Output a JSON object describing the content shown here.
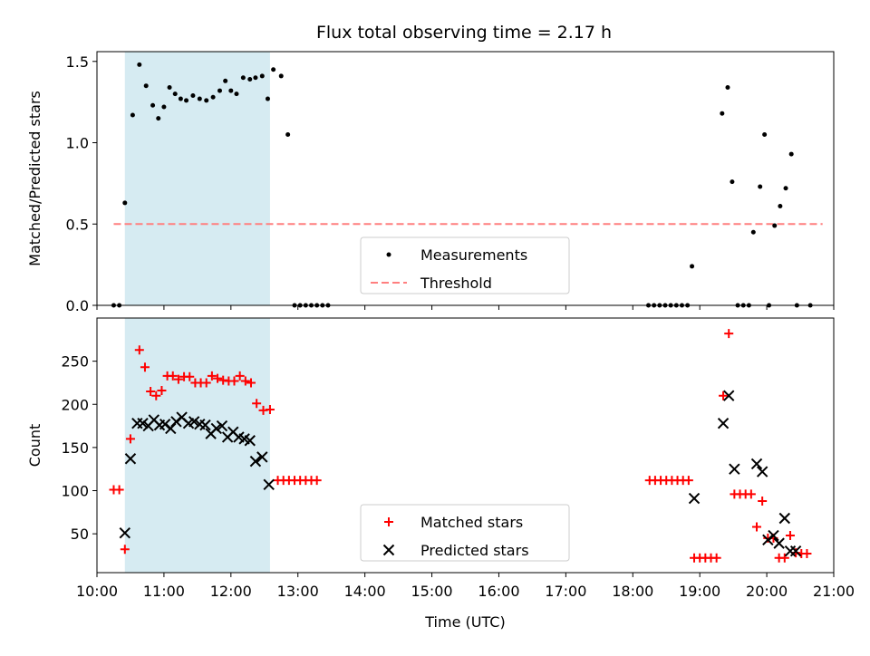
{
  "figure": {
    "title": "Flux total observing time = 2.17 h"
  },
  "chart_data": [
    {
      "type": "scatter",
      "ylabel": "Matched/Predicted stars",
      "ylim": [
        0,
        1.56
      ],
      "xlim": [
        "10:00",
        "21:00"
      ],
      "yticks": [
        "0.0",
        "0.5",
        "1.0",
        "1.5"
      ],
      "shaded_interval": [
        "10:25",
        "12:35"
      ],
      "shade_color": "#add8e6",
      "threshold": {
        "name": "Threshold",
        "value": 0.5,
        "x": [
          "10:15",
          "20:50"
        ],
        "color": "#ff7f7f"
      },
      "legend": {
        "placement": "lower-center",
        "entries": [
          "Measurements",
          "Threshold"
        ]
      },
      "series": [
        {
          "name": "Measurements",
          "color": "#000000",
          "points": [
            [
              "10:15",
              0
            ],
            [
              "10:20",
              0
            ],
            [
              "10:25",
              0.63
            ],
            [
              "10:32",
              1.17
            ],
            [
              "10:38",
              1.48
            ],
            [
              "10:44",
              1.35
            ],
            [
              "10:50",
              1.23
            ],
            [
              "10:55",
              1.15
            ],
            [
              "11:00",
              1.22
            ],
            [
              "11:05",
              1.34
            ],
            [
              "11:10",
              1.3
            ],
            [
              "11:15",
              1.27
            ],
            [
              "11:20",
              1.26
            ],
            [
              "11:26",
              1.29
            ],
            [
              "11:32",
              1.27
            ],
            [
              "11:38",
              1.26
            ],
            [
              "11:44",
              1.28
            ],
            [
              "11:50",
              1.32
            ],
            [
              "11:55",
              1.38
            ],
            [
              "12:00",
              1.32
            ],
            [
              "12:05",
              1.3
            ],
            [
              "12:11",
              1.4
            ],
            [
              "12:17",
              1.39
            ],
            [
              "12:22",
              1.4
            ],
            [
              "12:28",
              1.41
            ],
            [
              "12:33",
              1.27
            ],
            [
              "12:38",
              1.45
            ],
            [
              "12:45",
              1.41
            ],
            [
              "12:51",
              1.05
            ],
            [
              "12:57",
              0
            ],
            [
              "13:02",
              0
            ],
            [
              "13:07",
              0
            ],
            [
              "13:12",
              0
            ],
            [
              "13:17",
              0
            ],
            [
              "13:22",
              0
            ],
            [
              "13:27",
              0
            ],
            [
              "18:14",
              0
            ],
            [
              "18:19",
              0
            ],
            [
              "18:24",
              0
            ],
            [
              "18:29",
              0
            ],
            [
              "18:34",
              0
            ],
            [
              "18:39",
              0
            ],
            [
              "18:44",
              0
            ],
            [
              "18:49",
              0
            ],
            [
              "18:53",
              0.24
            ],
            [
              "19:20",
              1.18
            ],
            [
              "19:25",
              1.34
            ],
            [
              "19:29",
              0.76
            ],
            [
              "19:34",
              0
            ],
            [
              "19:39",
              0
            ],
            [
              "19:44",
              0
            ],
            [
              "19:48",
              0.45
            ],
            [
              "19:54",
              0.73
            ],
            [
              "19:58",
              1.05
            ],
            [
              "20:02",
              0
            ],
            [
              "20:07",
              0.49
            ],
            [
              "20:12",
              0.61
            ],
            [
              "20:17",
              0.72
            ],
            [
              "20:22",
              0.93
            ],
            [
              "20:27",
              0
            ],
            [
              "20:39",
              0
            ]
          ]
        }
      ]
    },
    {
      "type": "scatter",
      "xlabel": "Time (UTC)",
      "ylabel": "Count",
      "ylim": [
        5,
        300
      ],
      "xlim": [
        "10:00",
        "21:00"
      ],
      "yticks": [
        "50",
        "100",
        "150",
        "200",
        "250"
      ],
      "xticks": [
        "10:00",
        "11:00",
        "12:00",
        "13:00",
        "14:00",
        "15:00",
        "16:00",
        "17:00",
        "18:00",
        "19:00",
        "20:00",
        "21:00"
      ],
      "shaded_interval": [
        "10:25",
        "12:35"
      ],
      "legend": {
        "placement": "lower-center",
        "entries": [
          "Matched stars",
          "Predicted stars"
        ]
      },
      "series": [
        {
          "name": "Matched stars",
          "marker": "plus",
          "color": "#ff0000",
          "points": [
            [
              "10:15",
              101
            ],
            [
              "10:20",
              101
            ],
            [
              "10:25",
              32
            ],
            [
              "10:30",
              160
            ],
            [
              "10:38",
              263
            ],
            [
              "10:43",
              243
            ],
            [
              "10:48",
              215
            ],
            [
              "10:53",
              210
            ],
            [
              "10:58",
              216
            ],
            [
              "11:03",
              233
            ],
            [
              "11:08",
              233
            ],
            [
              "11:13",
              229
            ],
            [
              "11:18",
              232
            ],
            [
              "11:23",
              232
            ],
            [
              "11:28",
              225
            ],
            [
              "11:33",
              225
            ],
            [
              "11:38",
              225
            ],
            [
              "11:43",
              233
            ],
            [
              "11:48",
              230
            ],
            [
              "11:53",
              228
            ],
            [
              "11:58",
              227
            ],
            [
              "12:03",
              227
            ],
            [
              "12:08",
              233
            ],
            [
              "12:13",
              227
            ],
            [
              "12:18",
              225
            ],
            [
              "12:23",
              201
            ],
            [
              "12:29",
              193
            ],
            [
              "12:35",
              194
            ],
            [
              "12:42",
              112
            ],
            [
              "12:47",
              112
            ],
            [
              "12:52",
              112
            ],
            [
              "12:57",
              112
            ],
            [
              "13:02",
              112
            ],
            [
              "13:07",
              112
            ],
            [
              "13:12",
              112
            ],
            [
              "13:17",
              112
            ],
            [
              "18:15",
              112
            ],
            [
              "18:20",
              112
            ],
            [
              "18:25",
              112
            ],
            [
              "18:30",
              112
            ],
            [
              "18:35",
              112
            ],
            [
              "18:40",
              112
            ],
            [
              "18:45",
              112
            ],
            [
              "18:50",
              112
            ],
            [
              "18:55",
              22
            ],
            [
              "19:00",
              22
            ],
            [
              "19:05",
              22
            ],
            [
              "19:10",
              22
            ],
            [
              "19:15",
              22
            ],
            [
              "19:21",
              210
            ],
            [
              "19:26",
              282
            ],
            [
              "19:31",
              96
            ],
            [
              "19:36",
              96
            ],
            [
              "19:41",
              96
            ],
            [
              "19:46",
              96
            ],
            [
              "19:51",
              58
            ],
            [
              "19:56",
              88
            ],
            [
              "20:01",
              45
            ],
            [
              "20:06",
              45
            ],
            [
              "20:11",
              22
            ],
            [
              "20:16",
              22
            ],
            [
              "20:21",
              48
            ],
            [
              "20:26",
              28
            ],
            [
              "20:31",
              27
            ],
            [
              "20:36",
              27
            ]
          ]
        },
        {
          "name": "Predicted stars",
          "marker": "x",
          "color": "#000000",
          "points": [
            [
              "10:25",
              51
            ],
            [
              "10:30",
              137
            ],
            [
              "10:36",
              178
            ],
            [
              "10:41",
              178
            ],
            [
              "10:46",
              175
            ],
            [
              "10:51",
              182
            ],
            [
              "10:56",
              176
            ],
            [
              "11:01",
              177
            ],
            [
              "11:06",
              172
            ],
            [
              "11:11",
              180
            ],
            [
              "11:16",
              185
            ],
            [
              "11:22",
              178
            ],
            [
              "11:27",
              180
            ],
            [
              "11:32",
              177
            ],
            [
              "11:37",
              176
            ],
            [
              "11:42",
              166
            ],
            [
              "11:47",
              172
            ],
            [
              "11:52",
              175
            ],
            [
              "11:57",
              162
            ],
            [
              "12:02",
              168
            ],
            [
              "12:07",
              162
            ],
            [
              "12:12",
              160
            ],
            [
              "12:17",
              158
            ],
            [
              "12:22",
              134
            ],
            [
              "12:28",
              139
            ],
            [
              "12:34",
              107
            ],
            [
              "18:55",
              91
            ],
            [
              "19:21",
              178
            ],
            [
              "19:26",
              210
            ],
            [
              "19:31",
              125
            ],
            [
              "19:51",
              131
            ],
            [
              "19:56",
              122
            ],
            [
              "20:01",
              43
            ],
            [
              "20:06",
              48
            ],
            [
              "20:11",
              39
            ],
            [
              "20:16",
              68
            ],
            [
              "20:21",
              30
            ],
            [
              "20:26",
              30
            ]
          ]
        }
      ]
    }
  ]
}
